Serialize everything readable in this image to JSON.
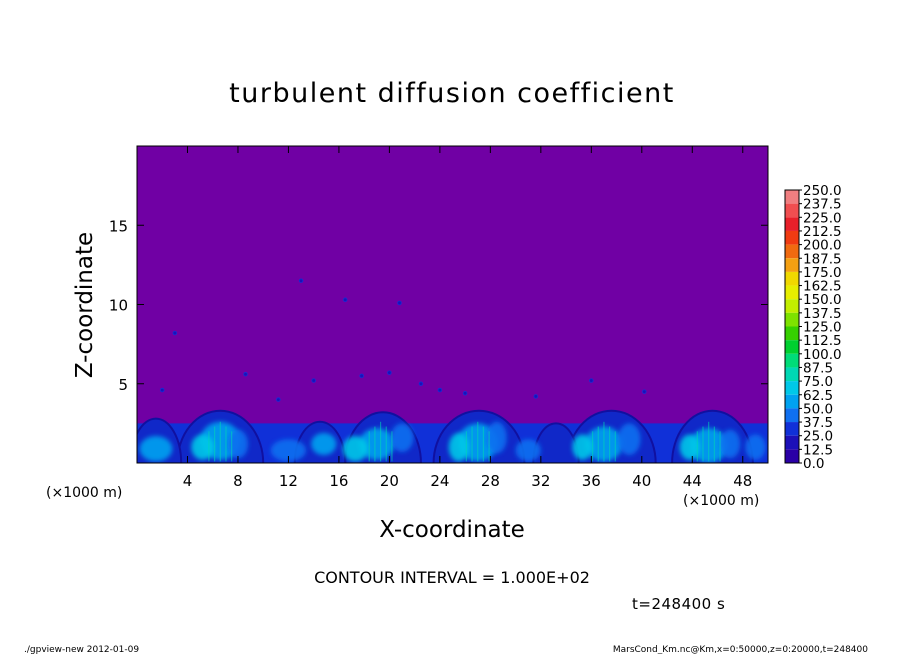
{
  "chart_data": {
    "type": "heatmap",
    "title": "turbulent diffusion coefficient",
    "xlabel": "X-coordinate",
    "ylabel": "Z-coordinate",
    "x_unit": "(×1000 m)",
    "y_unit": "(×1000 m)",
    "xlim": [
      0,
      50
    ],
    "ylim": [
      0,
      20
    ],
    "xticks": [
      4,
      8,
      12,
      16,
      20,
      24,
      28,
      32,
      36,
      40,
      44,
      48
    ],
    "yticks": [
      5,
      10,
      15
    ],
    "colorbar": {
      "levels": [
        "250.0",
        "237.5",
        "225.0",
        "212.5",
        "200.0",
        "187.5",
        "175.0",
        "162.5",
        "150.0",
        "137.5",
        "125.0",
        "112.5",
        "100.0",
        "87.5",
        "75.0",
        "62.5",
        "50.0",
        "37.5",
        "25.0",
        "12.5",
        "0.0"
      ],
      "colors": [
        "#f07e80",
        "#f04e50",
        "#e8202a",
        "#f03b12",
        "#f06a10",
        "#f4a012",
        "#f0d800",
        "#e6ee00",
        "#c2ee00",
        "#7ee200",
        "#36d000",
        "#00d030",
        "#00dc78",
        "#00d8b4",
        "#00c8e8",
        "#00a2f0",
        "#1070f0",
        "#1030d8",
        "#1c10b8",
        "#2a00a6",
        "#7000a4"
      ],
      "background_level_color": "#7000a4"
    },
    "field_summary": "low values (0.0–12.5) aloft; turbulent plumes with values up to ~75 below z≈3.5 km",
    "contour_interval": "CONTOUR INTERVAL = 1.000E+02",
    "time_label": "t=248400 s",
    "footer_left": "./gpview-new  2012-01-09",
    "footer_right": "MarsCond_Km.nc@Km,x=0:50000,z=0:20000,t=248400"
  }
}
